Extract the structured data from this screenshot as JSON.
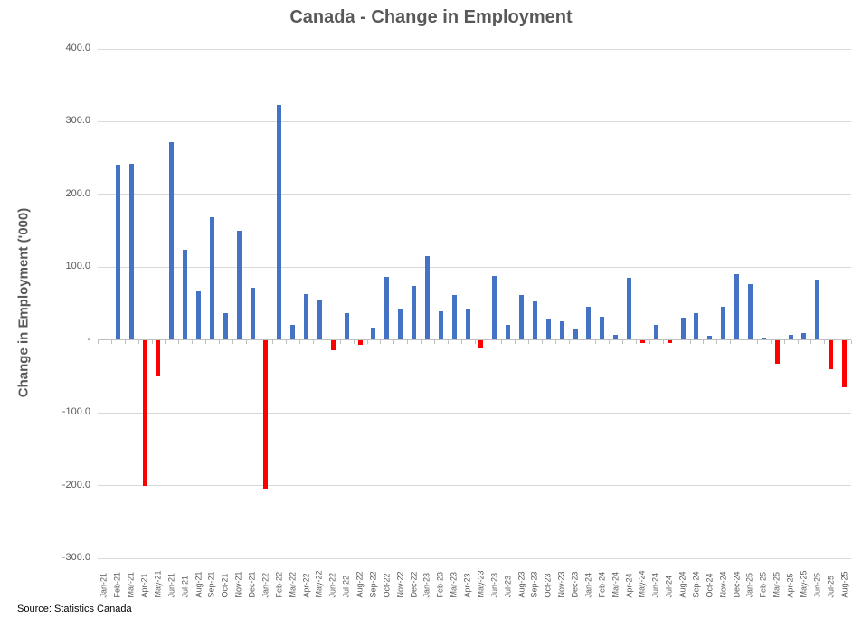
{
  "title": "Canada - Change in Employment",
  "source_note": "Source: Statistics Canada",
  "chart_data": {
    "type": "bar",
    "title": "Canada - Change in Employment",
    "xlabel": "",
    "ylabel": "Change in Employment ('000)",
    "ylim": [
      -300,
      400
    ],
    "grid": true,
    "legend_position": "none",
    "yticks": [
      {
        "value": 400,
        "label": "400.0"
      },
      {
        "value": 300,
        "label": "300.0"
      },
      {
        "value": 200,
        "label": "200.0"
      },
      {
        "value": 100,
        "label": "100.0"
      },
      {
        "value": 0,
        "label": "-"
      },
      {
        "value": -100,
        "label": "-100.0"
      },
      {
        "value": -200,
        "label": "-200.0"
      },
      {
        "value": -300,
        "label": "-300.0"
      }
    ],
    "categories": [
      "Jan-21",
      "Feb-21",
      "Mar-21",
      "Apr-21",
      "May-21",
      "Jun-21",
      "Jul-21",
      "Aug-21",
      "Sep-21",
      "Oct-21",
      "Nov-21",
      "Dec-21",
      "Jan-22",
      "Feb-22",
      "Mar-22",
      "Apr-22",
      "May-22",
      "Jun-22",
      "Jul-22",
      "Aug-22",
      "Sep-22",
      "Oct-22",
      "Nov-22",
      "Dec-22",
      "Jan-23",
      "Feb-23",
      "Mar-23",
      "Apr-23",
      "May-23",
      "Jun-23",
      "Jul-23",
      "Aug-23",
      "Sep-23",
      "Oct-23",
      "Nov-23",
      "Dec-23",
      "Jan-24",
      "Feb-24",
      "Mar-24",
      "Apr-24",
      "May-24",
      "Jun-24",
      "Jul-24",
      "Aug-24",
      "Sep-24",
      "Oct-24",
      "Nov-24",
      "Dec-24",
      "Jan-25",
      "Feb-25",
      "Mar-25",
      "Apr-25",
      "May-25",
      "Jun-25",
      "Jul-25",
      "Aug-25"
    ],
    "values": [
      0,
      240,
      242,
      -200,
      -48,
      271,
      123,
      66,
      168,
      37,
      149,
      71,
      -204,
      322,
      20,
      62,
      55,
      -13,
      37,
      -6,
      15,
      86,
      41,
      74,
      115,
      39,
      61,
      43,
      -11,
      87,
      20,
      61,
      53,
      28,
      25,
      14,
      45,
      31,
      7,
      85,
      -3,
      20,
      -4,
      30,
      36,
      5,
      45,
      90,
      76,
      1,
      -32,
      7,
      9,
      83,
      -40,
      -65
    ],
    "colors": {
      "positive_bar": "#4472C4",
      "negative_bar": "#FF0000",
      "gridline": "#D9D9D9",
      "axis": "#BFBFBF",
      "text": "#595959"
    }
  }
}
